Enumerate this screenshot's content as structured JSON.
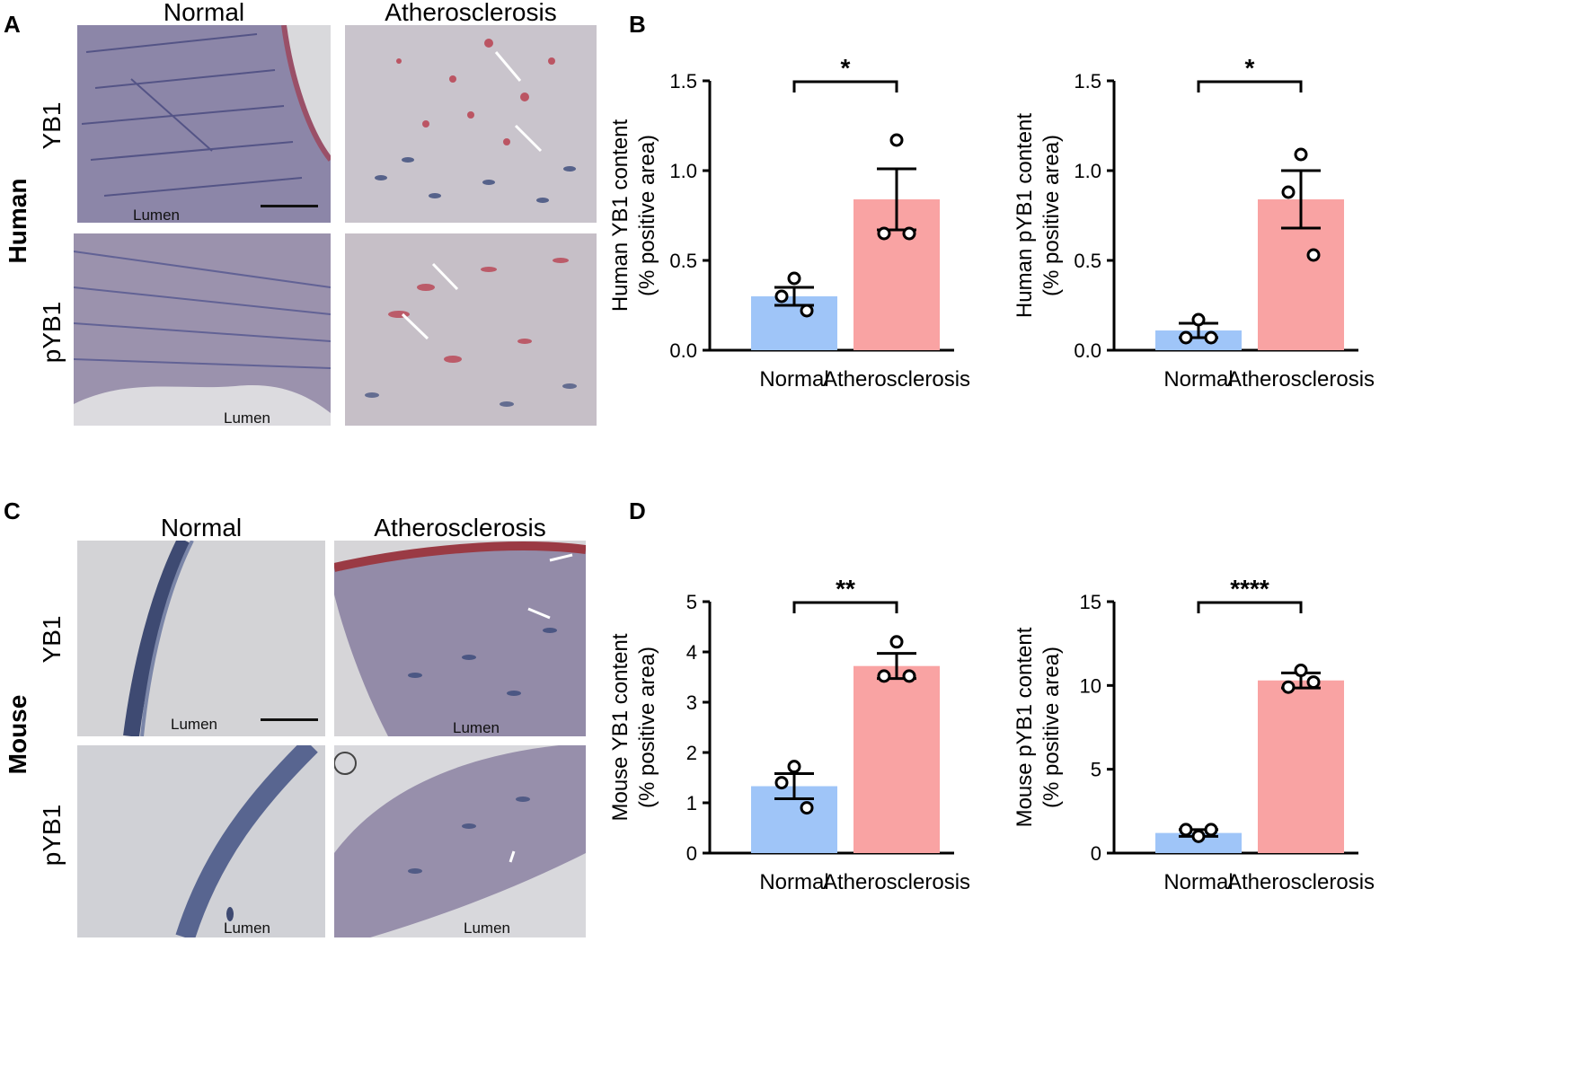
{
  "panels": {
    "A": "A",
    "B": "B",
    "C": "C",
    "D": "D"
  },
  "micrographs": {
    "col_normal": "Normal",
    "col_athero": "Atherosclerosis",
    "row_yb1": "YB1",
    "row_pyb1": "pYB1",
    "species_human": "Human",
    "species_mouse": "Mouse",
    "lumen": "Lumen",
    "colors": {
      "tissue_bg": "#e6e2e6",
      "nuclei": "#3a4a7a",
      "stain": "#b83a4a"
    }
  },
  "chart_data": [
    {
      "id": "human-yb1",
      "type": "bar",
      "categories": [
        "Normal",
        "Atherosclerosis"
      ],
      "values": [
        0.3,
        0.84
      ],
      "sem": [
        0.05,
        0.17
      ],
      "points": [
        [
          0.4,
          0.3,
          0.22
        ],
        [
          1.17,
          0.65,
          0.65
        ]
      ],
      "ylabel": [
        "Human YB1 content",
        "(% positive area)"
      ],
      "ylim": [
        0,
        1.5
      ],
      "yticks": [
        "0.0",
        "0.5",
        "1.0",
        "1.5"
      ],
      "ytick_values": [
        0,
        0.5,
        1.0,
        1.5
      ],
      "significance": "*",
      "colors": [
        "#9fc5f8",
        "#f9a3a3"
      ]
    },
    {
      "id": "human-pyb1",
      "type": "bar",
      "categories": [
        "Normal",
        "Atherosclerosis"
      ],
      "values": [
        0.11,
        0.84
      ],
      "sem": [
        0.04,
        0.16
      ],
      "points": [
        [
          0.17,
          0.07,
          0.07
        ],
        [
          1.09,
          0.88,
          0.53
        ]
      ],
      "ylabel": [
        "Human pYB1 content",
        "(% positive area)"
      ],
      "ylim": [
        0,
        1.5
      ],
      "yticks": [
        "0.0",
        "0.5",
        "1.0",
        "1.5"
      ],
      "ytick_values": [
        0,
        0.5,
        1.0,
        1.5
      ],
      "significance": "*",
      "colors": [
        "#9fc5f8",
        "#f9a3a3"
      ]
    },
    {
      "id": "mouse-yb1",
      "type": "bar",
      "categories": [
        "Normal",
        "Atherosclerosis"
      ],
      "values": [
        1.33,
        3.72
      ],
      "sem": [
        0.25,
        0.25
      ],
      "points": [
        [
          1.72,
          1.4,
          0.9
        ],
        [
          4.2,
          3.52,
          3.52
        ]
      ],
      "ylabel": [
        "Mouse YB1 content",
        "(% positive area)"
      ],
      "ylim": [
        0,
        5
      ],
      "yticks": [
        "0",
        "1",
        "2",
        "3",
        "4",
        "5"
      ],
      "ytick_values": [
        0,
        1,
        2,
        3,
        4,
        5
      ],
      "significance": "**",
      "colors": [
        "#9fc5f8",
        "#f9a3a3"
      ]
    },
    {
      "id": "mouse-pyb1",
      "type": "bar",
      "categories": [
        "Normal",
        "Atherosclerosis"
      ],
      "values": [
        1.2,
        10.3
      ],
      "sem": [
        0.2,
        0.45
      ],
      "points": [
        [
          1.0,
          1.4,
          1.4
        ],
        [
          10.9,
          9.9,
          10.2
        ]
      ],
      "ylabel": [
        "Mouse pYB1 content",
        "(% positive area)"
      ],
      "ylim": [
        0,
        15
      ],
      "yticks": [
        "0",
        "5",
        "10",
        "15"
      ],
      "ytick_values": [
        0,
        5,
        10,
        15
      ],
      "significance": "****",
      "colors": [
        "#9fc5f8",
        "#f9a3a3"
      ]
    }
  ]
}
